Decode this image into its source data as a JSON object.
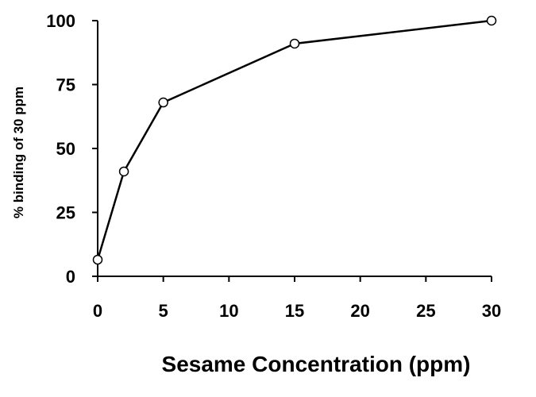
{
  "chart_data": {
    "type": "line",
    "title": "",
    "xlabel": "Sesame Concentration (ppm)",
    "ylabel": "% binding of 30 ppm",
    "xlim": [
      0,
      30
    ],
    "ylim": [
      0,
      100
    ],
    "x_ticks": [
      0,
      5,
      10,
      15,
      20,
      25,
      30
    ],
    "y_ticks": [
      0,
      25,
      50,
      75,
      100
    ],
    "x_tick_labels": [
      "0",
      "5",
      "10",
      "15",
      "20",
      "25",
      "30"
    ],
    "y_tick_labels": [
      "0",
      "25",
      "50",
      "75",
      "100"
    ],
    "grid": false,
    "legend": "none",
    "colors": {
      "line": "#000000",
      "marker_fill": "#ffffff",
      "marker_stroke": "#000000",
      "axis": "#000000"
    },
    "series": [
      {
        "x": [
          0,
          2,
          5,
          15,
          30
        ],
        "y": [
          6.5,
          41,
          68,
          91,
          100
        ],
        "marker": "open-circle"
      }
    ]
  }
}
